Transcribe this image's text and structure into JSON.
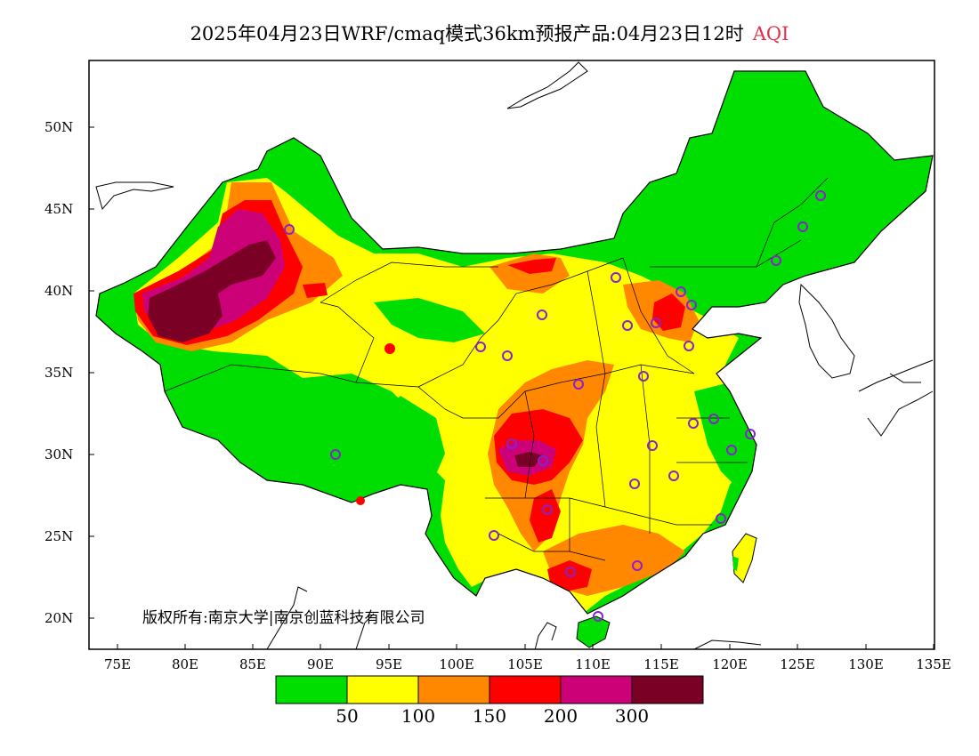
{
  "title": {
    "main": "2025年04月23日WRF/cmaq模式36km预报产品:04月23日12时",
    "variable": "AQI"
  },
  "copyright": "版权所有:南京大学|南京创蓝科技有限公司",
  "axes": {
    "lat_labels": [
      "50N",
      "45N",
      "40N",
      "35N",
      "30N",
      "25N",
      "20N"
    ],
    "lon_labels": [
      "75E",
      "80E",
      "85E",
      "90E",
      "95E",
      "100E",
      "105E",
      "110E",
      "115E",
      "120E",
      "125E",
      "130E",
      "135E"
    ]
  },
  "legend": {
    "colors": [
      "#00dd00",
      "#ffff00",
      "#ff8800",
      "#ff0000",
      "#cc0077",
      "#7a0026"
    ],
    "labels": [
      "50",
      "100",
      "150",
      "200",
      "300"
    ]
  },
  "colors": {
    "good": "#00dd00",
    "moderate": "#ffff00",
    "usg": "#ff8800",
    "unhealthy": "#ff0000",
    "very_unhealthy": "#cc0077",
    "hazardous": "#7a0026",
    "station_marker": "#8822cc"
  }
}
